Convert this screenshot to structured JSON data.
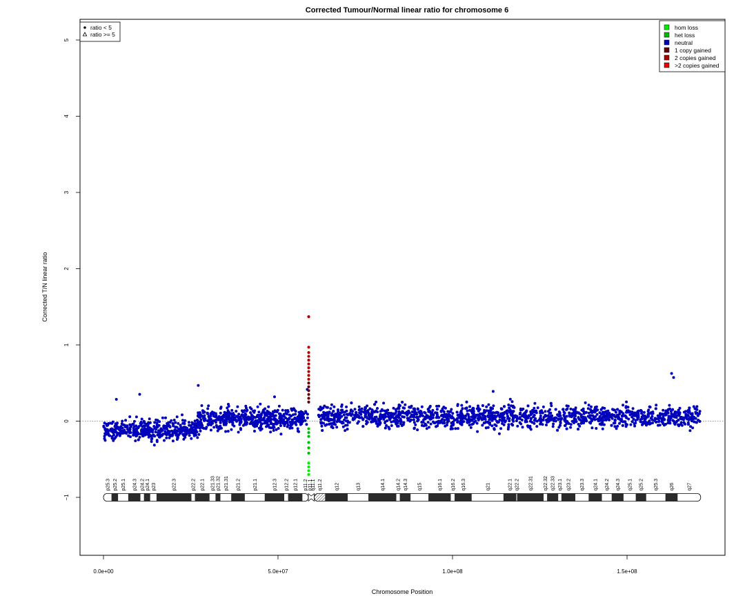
{
  "chart_data": {
    "type": "scatter",
    "title": "Corrected Tumour/Normal linear ratio for chromosome  6",
    "xlabel": "Chromosome Position",
    "ylabel": "Corrected T/N linear ratio",
    "xlim": [
      -13000000,
      344000000
    ],
    "ylim": [
      -1.8,
      5.3
    ],
    "x_ticks": [
      {
        "value": 0,
        "label": "0.0e+00"
      },
      {
        "value": 50000000,
        "label": "5.0e+07"
      },
      {
        "value": 100000000,
        "label": "1.0e+08"
      },
      {
        "value": 150000000,
        "label": "1.5e+08"
      }
    ],
    "y_ticks": [
      {
        "value": -1,
        "label": "−1"
      },
      {
        "value": 0,
        "label": "0"
      },
      {
        "value": 1,
        "label": "1"
      },
      {
        "value": 2,
        "label": "2"
      },
      {
        "value": 3,
        "label": "3"
      },
      {
        "value": 4,
        "label": "4"
      },
      {
        "value": 5,
        "label": "5"
      }
    ],
    "reference_line": {
      "y": 0,
      "style": "dotted",
      "color": "#777777"
    },
    "shape_legend": {
      "position": "top-left",
      "entries": [
        {
          "symbol": "circle",
          "label": "ratio < 5"
        },
        {
          "symbol": "triangle",
          "label": "ratio >= 5"
        }
      ]
    },
    "color_legend": {
      "position": "top-right",
      "entries": [
        {
          "label": "hom loss",
          "color": "#00ee00"
        },
        {
          "label": "het loss",
          "color": "#00bb00"
        },
        {
          "label": "neutral",
          "color": "#0000bb"
        },
        {
          "label": "1 copy gained",
          "color": "#660000"
        },
        {
          "label": "2 copies gained",
          "color": "#aa0000"
        },
        {
          "label": ">2 copies gained",
          "color": "#ee0000"
        }
      ]
    },
    "neutral_segments": [
      {
        "start": 0,
        "end": 27000000,
        "mean": -0.12,
        "spread": 0.18
      },
      {
        "start": 27000000,
        "end": 58500000,
        "mean": 0.03,
        "spread": 0.2
      },
      {
        "start": 61500000,
        "end": 171000000,
        "mean": 0.06,
        "spread": 0.2
      }
    ],
    "highlighted_points": [
      {
        "x": 58800000,
        "y": 1.37,
        "color": "#aa0000"
      },
      {
        "x": 58800000,
        "y": 0.97,
        "color": "#aa0000"
      },
      {
        "x": 58800000,
        "y": 0.9,
        "color": "#aa0000"
      },
      {
        "x": 58800000,
        "y": 0.85,
        "color": "#aa0000"
      },
      {
        "x": 58800000,
        "y": 0.8,
        "color": "#aa0000"
      },
      {
        "x": 58800000,
        "y": 0.75,
        "color": "#aa0000"
      },
      {
        "x": 58800000,
        "y": 0.7,
        "color": "#aa0000"
      },
      {
        "x": 58800000,
        "y": 0.65,
        "color": "#aa0000"
      },
      {
        "x": 58800000,
        "y": 0.6,
        "color": "#aa0000"
      },
      {
        "x": 58800000,
        "y": 0.55,
        "color": "#aa0000"
      },
      {
        "x": 58800000,
        "y": 0.5,
        "color": "#660000"
      },
      {
        "x": 58800000,
        "y": 0.45,
        "color": "#660000"
      },
      {
        "x": 58800000,
        "y": 0.4,
        "color": "#660000"
      },
      {
        "x": 58800000,
        "y": 0.35,
        "color": "#660000"
      },
      {
        "x": 58800000,
        "y": 0.3,
        "color": "#660000"
      },
      {
        "x": 58800000,
        "y": 0.25,
        "color": "#660000"
      },
      {
        "x": 58800000,
        "y": -0.1,
        "color": "#00bb00"
      },
      {
        "x": 58800000,
        "y": -0.15,
        "color": "#00bb00"
      },
      {
        "x": 58800000,
        "y": -0.2,
        "color": "#00bb00"
      },
      {
        "x": 58800000,
        "y": -0.28,
        "color": "#00bb00"
      },
      {
        "x": 58800000,
        "y": -0.35,
        "color": "#00bb00"
      },
      {
        "x": 58800000,
        "y": -0.42,
        "color": "#00bb00"
      },
      {
        "x": 58800000,
        "y": -0.55,
        "color": "#00ee00"
      },
      {
        "x": 58800000,
        "y": -0.6,
        "color": "#00ee00"
      },
      {
        "x": 58800000,
        "y": -0.65,
        "color": "#00ee00"
      },
      {
        "x": 58800000,
        "y": -0.7,
        "color": "#00ee00"
      }
    ],
    "ideogram": {
      "y": -1,
      "centromere": 59500000,
      "bands": [
        {
          "name": "p25.3",
          "start": 0,
          "end": 2300000,
          "stain": "gneg"
        },
        {
          "name": "p25.2",
          "start": 2300000,
          "end": 4200000,
          "stain": "gpos"
        },
        {
          "name": "p25.1",
          "start": 4200000,
          "end": 7100000,
          "stain": "gneg"
        },
        {
          "name": "p24.3",
          "start": 7100000,
          "end": 10600000,
          "stain": "gpos"
        },
        {
          "name": "p24.2",
          "start": 10600000,
          "end": 11600000,
          "stain": "gneg"
        },
        {
          "name": "p24.1",
          "start": 11600000,
          "end": 13400000,
          "stain": "gpos"
        },
        {
          "name": "p23",
          "start": 13400000,
          "end": 15200000,
          "stain": "gneg"
        },
        {
          "name": "p22.3",
          "start": 15200000,
          "end": 25200000,
          "stain": "gpos"
        },
        {
          "name": "p22.2",
          "start": 25200000,
          "end": 26200000,
          "stain": "gneg"
        },
        {
          "name": "p22.1",
          "start": 26200000,
          "end": 30400000,
          "stain": "gpos"
        },
        {
          "name": "p21.33",
          "start": 30400000,
          "end": 32100000,
          "stain": "gneg"
        },
        {
          "name": "p21.32",
          "start": 32100000,
          "end": 33500000,
          "stain": "gpos"
        },
        {
          "name": "p21.31",
          "start": 33500000,
          "end": 36600000,
          "stain": "gneg"
        },
        {
          "name": "p21.2",
          "start": 36600000,
          "end": 40500000,
          "stain": "gpos"
        },
        {
          "name": "p21.1",
          "start": 40500000,
          "end": 46200000,
          "stain": "gneg"
        },
        {
          "name": "p12.3",
          "start": 46200000,
          "end": 51800000,
          "stain": "gpos"
        },
        {
          "name": "p12.2",
          "start": 51800000,
          "end": 52900000,
          "stain": "gneg"
        },
        {
          "name": "p12.1",
          "start": 52900000,
          "end": 57000000,
          "stain": "gpos"
        },
        {
          "name": "p11.2",
          "start": 57000000,
          "end": 58700000,
          "stain": "gneg"
        },
        {
          "name": "p11.1",
          "start": 58700000,
          "end": 59500000,
          "stain": "acen"
        },
        {
          "name": "q11.1",
          "start": 59500000,
          "end": 60400000,
          "stain": "acen"
        },
        {
          "name": "q11.2",
          "start": 60400000,
          "end": 63500000,
          "stain": "gvar"
        },
        {
          "name": "q12",
          "start": 63500000,
          "end": 70000000,
          "stain": "gpos"
        },
        {
          "name": "q13",
          "start": 70000000,
          "end": 75900000,
          "stain": "gneg"
        },
        {
          "name": "q14.1",
          "start": 75900000,
          "end": 83900000,
          "stain": "gpos"
        },
        {
          "name": "q14.2",
          "start": 83900000,
          "end": 84900000,
          "stain": "gneg"
        },
        {
          "name": "q14.3",
          "start": 84900000,
          "end": 88000000,
          "stain": "gpos"
        },
        {
          "name": "q15",
          "start": 88000000,
          "end": 93100000,
          "stain": "gneg"
        },
        {
          "name": "q16.1",
          "start": 93100000,
          "end": 99500000,
          "stain": "gpos"
        },
        {
          "name": "q16.2",
          "start": 99500000,
          "end": 100600000,
          "stain": "gneg"
        },
        {
          "name": "q16.3",
          "start": 100600000,
          "end": 105500000,
          "stain": "gpos"
        },
        {
          "name": "q21",
          "start": 105500000,
          "end": 114600000,
          "stain": "gneg"
        },
        {
          "name": "q22.1",
          "start": 114600000,
          "end": 118300000,
          "stain": "gpos"
        },
        {
          "name": "q22.2",
          "start": 118300000,
          "end": 118500000,
          "stain": "gneg"
        },
        {
          "name": "q22.31",
          "start": 118500000,
          "end": 126100000,
          "stain": "gpos"
        },
        {
          "name": "q22.32",
          "start": 126100000,
          "end": 127100000,
          "stain": "gneg"
        },
        {
          "name": "q22.33",
          "start": 127100000,
          "end": 130300000,
          "stain": "gpos"
        },
        {
          "name": "q23.1",
          "start": 130300000,
          "end": 131200000,
          "stain": "gneg"
        },
        {
          "name": "q23.2",
          "start": 131200000,
          "end": 135200000,
          "stain": "gpos"
        },
        {
          "name": "q23.3",
          "start": 135200000,
          "end": 139000000,
          "stain": "gneg"
        },
        {
          "name": "q24.1",
          "start": 139000000,
          "end": 142800000,
          "stain": "gpos"
        },
        {
          "name": "q24.2",
          "start": 142800000,
          "end": 145600000,
          "stain": "gneg"
        },
        {
          "name": "q24.3",
          "start": 145600000,
          "end": 149000000,
          "stain": "gpos"
        },
        {
          "name": "q25.1",
          "start": 149000000,
          "end": 152500000,
          "stain": "gneg"
        },
        {
          "name": "q25.2",
          "start": 152500000,
          "end": 155500000,
          "stain": "gpos"
        },
        {
          "name": "q25.3",
          "start": 155500000,
          "end": 161000000,
          "stain": "gneg"
        },
        {
          "name": "q26",
          "start": 161000000,
          "end": 164500000,
          "stain": "gpos"
        },
        {
          "name": "q27",
          "start": 164500000,
          "end": 171100000,
          "stain": "gneg"
        }
      ]
    }
  }
}
